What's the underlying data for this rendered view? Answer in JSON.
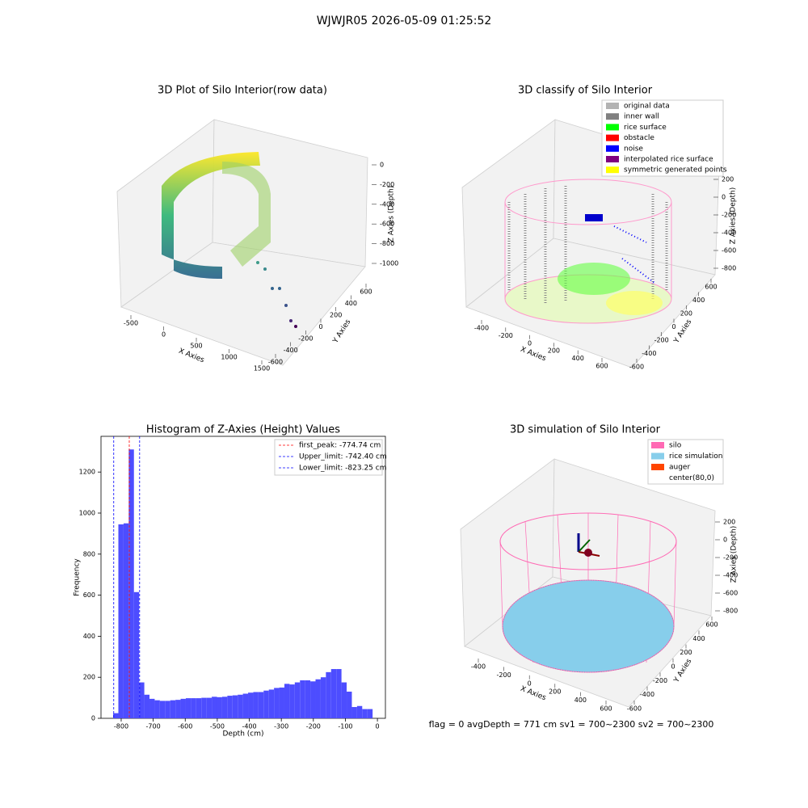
{
  "title": "WJWJR05 2026-05-09 01:25:52",
  "status": "flag = 0     avgDepth = 771 cm  sv1 = 700~2300  sv2 = 700~2300",
  "chart_data": [
    {
      "type": "scatter3d",
      "title": "3D Plot of Silo Interior(row data)",
      "xlabel": "X Axies",
      "ylabel": "Y Axies",
      "zlabel": "Z Axies (Depth)",
      "xticks": [
        -500,
        0,
        500,
        1000,
        1500
      ],
      "yticks": [
        -600,
        -400,
        -200,
        0,
        200,
        400,
        600
      ],
      "zticks": [
        0,
        -200,
        -400,
        -600,
        -800,
        -1000
      ]
    },
    {
      "type": "scatter3d",
      "title": "3D classify of Silo Interior",
      "xlabel": "X Axies",
      "ylabel": "Y Axies",
      "zlabel": "Z Axies (Depth)",
      "xticks": [
        -400,
        -200,
        0,
        200,
        400,
        600
      ],
      "yticks": [
        -600,
        -400,
        -200,
        0,
        200,
        400,
        600
      ],
      "zticks": [
        200,
        0,
        -200,
        -400,
        -600,
        -800
      ],
      "legend": [
        {
          "name": "original data",
          "color": "#b3b3b3"
        },
        {
          "name": "inner wall",
          "color": "#808080"
        },
        {
          "name": "rice surface",
          "color": "#00ff00"
        },
        {
          "name": "obstacle",
          "color": "#ff0000"
        },
        {
          "name": "noise",
          "color": "#0000ff"
        },
        {
          "name": "interpolated rice surface",
          "color": "#800080"
        },
        {
          "name": "symmetric generated points",
          "color": "#ffff00"
        }
      ]
    },
    {
      "type": "histogram",
      "title": "Histogram of Z-Axies (Height) Values",
      "xlabel": "Depth (cm)",
      "ylabel": "Frequency",
      "color": "#4d4dff",
      "bins": [
        -825,
        -808.8,
        -792.6,
        -776.4,
        -760.2,
        -744,
        -727.8,
        -711.6,
        -695.4,
        -679.2,
        -663,
        -646.8,
        -630.6,
        -614.4,
        -598.2,
        -582,
        -565.8,
        -549.6,
        -533.4,
        -517.2,
        -501,
        -484.8,
        -468.6,
        -452.4,
        -436.2,
        -420,
        -403.8,
        -387.6,
        -371.4,
        -355.2,
        -339,
        -322.8,
        -306.6,
        -290.4,
        -274.2,
        -258,
        -241.8,
        -225.6,
        -209.4,
        -193.2,
        -177,
        -160.8,
        -144.6,
        -128.4,
        -112.2,
        -96,
        -79.8,
        -63.6,
        -47.4,
        -31.2,
        -15
      ],
      "counts": [
        25,
        945,
        950,
        1310,
        615,
        175,
        115,
        95,
        88,
        85,
        85,
        88,
        90,
        95,
        98,
        98,
        98,
        100,
        100,
        105,
        103,
        105,
        110,
        112,
        115,
        120,
        125,
        128,
        128,
        135,
        140,
        148,
        150,
        168,
        165,
        175,
        185,
        185,
        180,
        190,
        200,
        225,
        240,
        240,
        175,
        130,
        55,
        60,
        45,
        45
      ],
      "xlim": [
        -863,
        25
      ],
      "ylim": [
        0,
        1374
      ],
      "xticks": [
        -800,
        -700,
        -600,
        -500,
        -400,
        -300,
        -200,
        -100,
        0
      ],
      "yticks": [
        0,
        200,
        400,
        600,
        800,
        1000,
        1200
      ],
      "lines": [
        {
          "name": "first_peak: -774.74 cm",
          "value": -774.74,
          "color": "#ff0000"
        },
        {
          "name": "Upper_limit: -742.40 cm",
          "value": -742.4,
          "color": "#0000ff"
        },
        {
          "name": "Lower_limit: -823.25 cm",
          "value": -823.25,
          "color": "#0000ff"
        }
      ]
    },
    {
      "type": "scatter3d",
      "title": "3D simulation of Silo Interior",
      "xlabel": "X Axies",
      "ylabel": "Y Axies",
      "zlabel": "Z Axies (Depth)",
      "xticks": [
        -400,
        -200,
        0,
        200,
        400,
        600
      ],
      "yticks": [
        -600,
        -400,
        -200,
        0,
        200,
        400,
        600
      ],
      "zticks": [
        200,
        0,
        -200,
        -400,
        -600,
        -800
      ],
      "legend": [
        {
          "name": "silo",
          "color": "#ff69b4"
        },
        {
          "name": "rice simulation",
          "color": "#87ceeb"
        },
        {
          "name": "auger",
          "color": "#ff4500"
        },
        {
          "name": "center(80,0)",
          "color": "#ffffff"
        }
      ]
    }
  ]
}
